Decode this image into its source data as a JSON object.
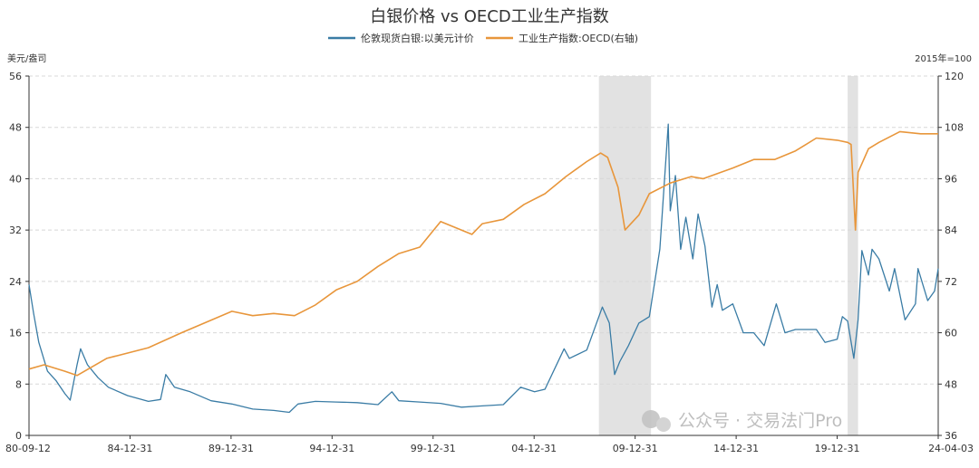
{
  "chart_data": {
    "type": "line",
    "title": "白银价格 vs OECD工业生产指数",
    "left_unit": "美元/盎司",
    "right_unit": "2015年=100",
    "legend_position": "top-center",
    "grid": true,
    "x_range": [
      "1980-09-12",
      "2024-04-03"
    ],
    "x_tick_labels": [
      "80-09-12",
      "84-12-31",
      "89-12-31",
      "94-12-31",
      "99-12-31",
      "04-12-31",
      "09-12-31",
      "14-12-31",
      "19-12-31",
      "24-04-03"
    ],
    "y_left": {
      "min": 0,
      "max": 56,
      "ticks": [
        0,
        8,
        16,
        24,
        32,
        40,
        48,
        56
      ]
    },
    "y_right": {
      "min": 36,
      "max": 120,
      "ticks": [
        36,
        48,
        60,
        72,
        84,
        96,
        108,
        120
      ]
    },
    "recession_bands": [
      {
        "start": "2008-01-01",
        "end": "2010-06-30"
      },
      {
        "start": "2019-12-01",
        "end": "2020-06-01"
      }
    ],
    "series": [
      {
        "name": "伦敦现货白银:以美元计价",
        "axis": "left",
        "color": "#3a7ca5",
        "points": [
          [
            "1980-09-12",
            23.5
          ],
          [
            "1980-12-01",
            19.0
          ],
          [
            "1981-03-01",
            14.5
          ],
          [
            "1981-08-01",
            10.0
          ],
          [
            "1982-01-01",
            8.5
          ],
          [
            "1982-06-01",
            6.5
          ],
          [
            "1982-09-01",
            5.5
          ],
          [
            "1983-01-01",
            11.0
          ],
          [
            "1983-03-01",
            13.5
          ],
          [
            "1983-07-01",
            11.0
          ],
          [
            "1984-01-01",
            9.0
          ],
          [
            "1984-07-01",
            7.5
          ],
          [
            "1985-06-01",
            6.2
          ],
          [
            "1986-06-01",
            5.3
          ],
          [
            "1987-01-01",
            5.6
          ],
          [
            "1987-04-01",
            9.5
          ],
          [
            "1987-09-01",
            7.5
          ],
          [
            "1988-06-01",
            6.8
          ],
          [
            "1989-06-01",
            5.4
          ],
          [
            "1990-06-01",
            4.9
          ],
          [
            "1991-06-01",
            4.1
          ],
          [
            "1992-06-01",
            3.9
          ],
          [
            "1993-03-01",
            3.6
          ],
          [
            "1993-08-01",
            4.9
          ],
          [
            "1994-06-01",
            5.3
          ],
          [
            "1995-06-01",
            5.2
          ],
          [
            "1996-06-01",
            5.1
          ],
          [
            "1997-06-01",
            4.8
          ],
          [
            "1998-02-01",
            6.8
          ],
          [
            "1998-06-01",
            5.4
          ],
          [
            "1999-06-01",
            5.2
          ],
          [
            "2000-06-01",
            5.0
          ],
          [
            "2001-06-01",
            4.4
          ],
          [
            "2002-06-01",
            4.6
          ],
          [
            "2003-06-01",
            4.8
          ],
          [
            "2004-04-01",
            7.5
          ],
          [
            "2004-12-01",
            6.8
          ],
          [
            "2005-06-01",
            7.2
          ],
          [
            "2006-05-01",
            13.5
          ],
          [
            "2006-08-01",
            12.0
          ],
          [
            "2007-06-01",
            13.3
          ],
          [
            "2008-03-01",
            20.0
          ],
          [
            "2008-07-01",
            17.5
          ],
          [
            "2008-10-01",
            9.5
          ],
          [
            "2009-01-01",
            11.5
          ],
          [
            "2009-06-01",
            14.0
          ],
          [
            "2009-12-01",
            17.5
          ],
          [
            "2010-06-01",
            18.5
          ],
          [
            "2010-12-01",
            29.0
          ],
          [
            "2011-04-28",
            48.5
          ],
          [
            "2011-06-01",
            35.0
          ],
          [
            "2011-09-01",
            40.5
          ],
          [
            "2011-12-01",
            29.0
          ],
          [
            "2012-03-01",
            34.0
          ],
          [
            "2012-07-01",
            27.5
          ],
          [
            "2012-10-01",
            34.5
          ],
          [
            "2013-02-01",
            29.5
          ],
          [
            "2013-06-01",
            20.0
          ],
          [
            "2013-09-01",
            23.5
          ],
          [
            "2013-12-01",
            19.5
          ],
          [
            "2014-06-01",
            20.5
          ],
          [
            "2014-12-01",
            16.0
          ],
          [
            "2015-06-01",
            16.0
          ],
          [
            "2015-12-01",
            14.0
          ],
          [
            "2016-07-01",
            20.5
          ],
          [
            "2016-12-01",
            16.0
          ],
          [
            "2017-06-01",
            16.5
          ],
          [
            "2018-06-01",
            16.5
          ],
          [
            "2018-11-01",
            14.5
          ],
          [
            "2019-06-01",
            15.0
          ],
          [
            "2019-09-01",
            18.5
          ],
          [
            "2019-12-01",
            17.8
          ],
          [
            "2020-03-18",
            12.0
          ],
          [
            "2020-06-01",
            18.0
          ],
          [
            "2020-08-07",
            28.8
          ],
          [
            "2020-12-01",
            25.0
          ],
          [
            "2021-02-01",
            29.0
          ],
          [
            "2021-06-01",
            27.5
          ],
          [
            "2021-12-01",
            22.5
          ],
          [
            "2022-03-01",
            26.0
          ],
          [
            "2022-09-01",
            18.0
          ],
          [
            "2023-03-01",
            20.5
          ],
          [
            "2023-04-15",
            26.0
          ],
          [
            "2023-10-01",
            21.0
          ],
          [
            "2024-02-01",
            22.5
          ],
          [
            "2024-04-03",
            26.0
          ]
        ]
      },
      {
        "name": "工业生产指数:OECD(右轴)",
        "axis": "right",
        "color": "#e8963b",
        "points": [
          [
            "1980-09-12",
            51.5
          ],
          [
            "1981-06-01",
            52.5
          ],
          [
            "1982-06-01",
            51.0
          ],
          [
            "1983-01-01",
            50.0
          ],
          [
            "1984-06-01",
            54.0
          ],
          [
            "1986-06-01",
            56.5
          ],
          [
            "1988-01-01",
            60.0
          ],
          [
            "1990-06-01",
            65.0
          ],
          [
            "1991-06-01",
            64.0
          ],
          [
            "1992-06-01",
            64.5
          ],
          [
            "1993-06-01",
            64.0
          ],
          [
            "1994-06-01",
            66.5
          ],
          [
            "1995-06-01",
            70.0
          ],
          [
            "1996-06-01",
            72.0
          ],
          [
            "1997-06-01",
            75.5
          ],
          [
            "1998-06-01",
            78.5
          ],
          [
            "1999-06-01",
            80.0
          ],
          [
            "2000-06-01",
            86.0
          ],
          [
            "2001-12-01",
            83.0
          ],
          [
            "2002-06-01",
            85.5
          ],
          [
            "2003-06-01",
            86.5
          ],
          [
            "2004-06-01",
            90.0
          ],
          [
            "2005-06-01",
            92.5
          ],
          [
            "2006-06-01",
            96.5
          ],
          [
            "2007-06-01",
            100.0
          ],
          [
            "2008-02-01",
            102.0
          ],
          [
            "2008-06-01",
            101.0
          ],
          [
            "2008-12-01",
            94.0
          ],
          [
            "2009-04-01",
            84.0
          ],
          [
            "2009-12-01",
            87.5
          ],
          [
            "2010-06-01",
            92.5
          ],
          [
            "2011-06-01",
            95.0
          ],
          [
            "2012-06-01",
            96.5
          ],
          [
            "2013-01-01",
            96.0
          ],
          [
            "2014-06-01",
            98.5
          ],
          [
            "2015-06-01",
            100.5
          ],
          [
            "2016-06-01",
            100.5
          ],
          [
            "2017-06-01",
            102.5
          ],
          [
            "2018-06-01",
            105.5
          ],
          [
            "2019-06-01",
            105.0
          ],
          [
            "2019-12-01",
            104.5
          ],
          [
            "2020-02-01",
            104.0
          ],
          [
            "2020-04-15",
            84.0
          ],
          [
            "2020-06-01",
            97.5
          ],
          [
            "2020-12-01",
            103.0
          ],
          [
            "2021-06-01",
            104.5
          ],
          [
            "2022-06-01",
            107.0
          ],
          [
            "2023-06-01",
            106.5
          ],
          [
            "2024-04-03",
            106.5
          ]
        ]
      }
    ]
  },
  "watermark": "公众号 · 交易法门Pro"
}
